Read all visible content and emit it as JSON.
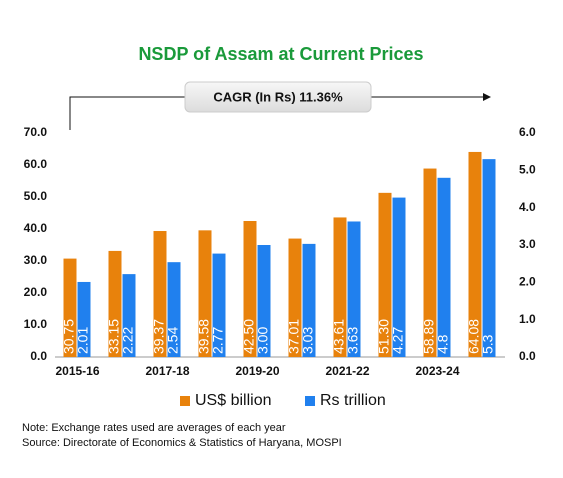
{
  "chart_data": {
    "type": "bar",
    "title": "NSDP of Assam at Current Prices",
    "annotation": "CAGR (In Rs) 11.36%",
    "categories": [
      "2015-16",
      null,
      "2017-18",
      null,
      "2019-20",
      null,
      "2021-22",
      null,
      "2023-24",
      null
    ],
    "series": [
      {
        "name": "US$ billion",
        "color": "#e8820c",
        "axis": "y",
        "values": [
          30.75,
          33.15,
          39.37,
          39.58,
          42.5,
          37.01,
          43.61,
          51.3,
          58.89,
          64.08
        ],
        "value_labels": [
          "30.75",
          "33.15",
          "39.37",
          "39.58",
          "42.50",
          "37.01",
          "43.61",
          "51.30",
          "58.89",
          "64.08"
        ]
      },
      {
        "name": "Rs trillion",
        "color": "#2080ee",
        "axis": "y2",
        "values": [
          2.01,
          2.22,
          2.54,
          2.77,
          3.0,
          3.03,
          3.63,
          4.27,
          4.8,
          5.3
        ],
        "value_labels": [
          "2.01",
          "2.22",
          "2.54",
          "2.77",
          "3.00",
          "3.03",
          "3.63",
          "4.27",
          "4.8",
          "5.3"
        ]
      }
    ],
    "ylim": [
      0,
      70
    ],
    "yticks": [
      {
        "value": 0,
        "label": "0.0"
      },
      {
        "value": 10,
        "label": "10.0"
      },
      {
        "value": 20,
        "label": "20.0"
      },
      {
        "value": 30,
        "label": "30.0"
      },
      {
        "value": 40,
        "label": "40.0"
      },
      {
        "value": 50,
        "label": "50.0"
      },
      {
        "value": 60,
        "label": "60.0"
      },
      {
        "value": 70,
        "label": "70.0"
      }
    ],
    "y2lim": [
      0,
      6
    ],
    "y2ticks": [
      {
        "value": 0,
        "label": "0.0"
      },
      {
        "value": 1,
        "label": "1.0"
      },
      {
        "value": 2,
        "label": "2.0"
      },
      {
        "value": 3,
        "label": "3.0"
      },
      {
        "value": 4,
        "label": "4.0"
      },
      {
        "value": 5,
        "label": "5.0"
      },
      {
        "value": 6,
        "label": "6.0"
      }
    ],
    "notes": [
      "Note: Exchange rates used are averages of each year",
      "Source: Directorate of Economics & Statistics of Haryana, MOSPI"
    ]
  }
}
